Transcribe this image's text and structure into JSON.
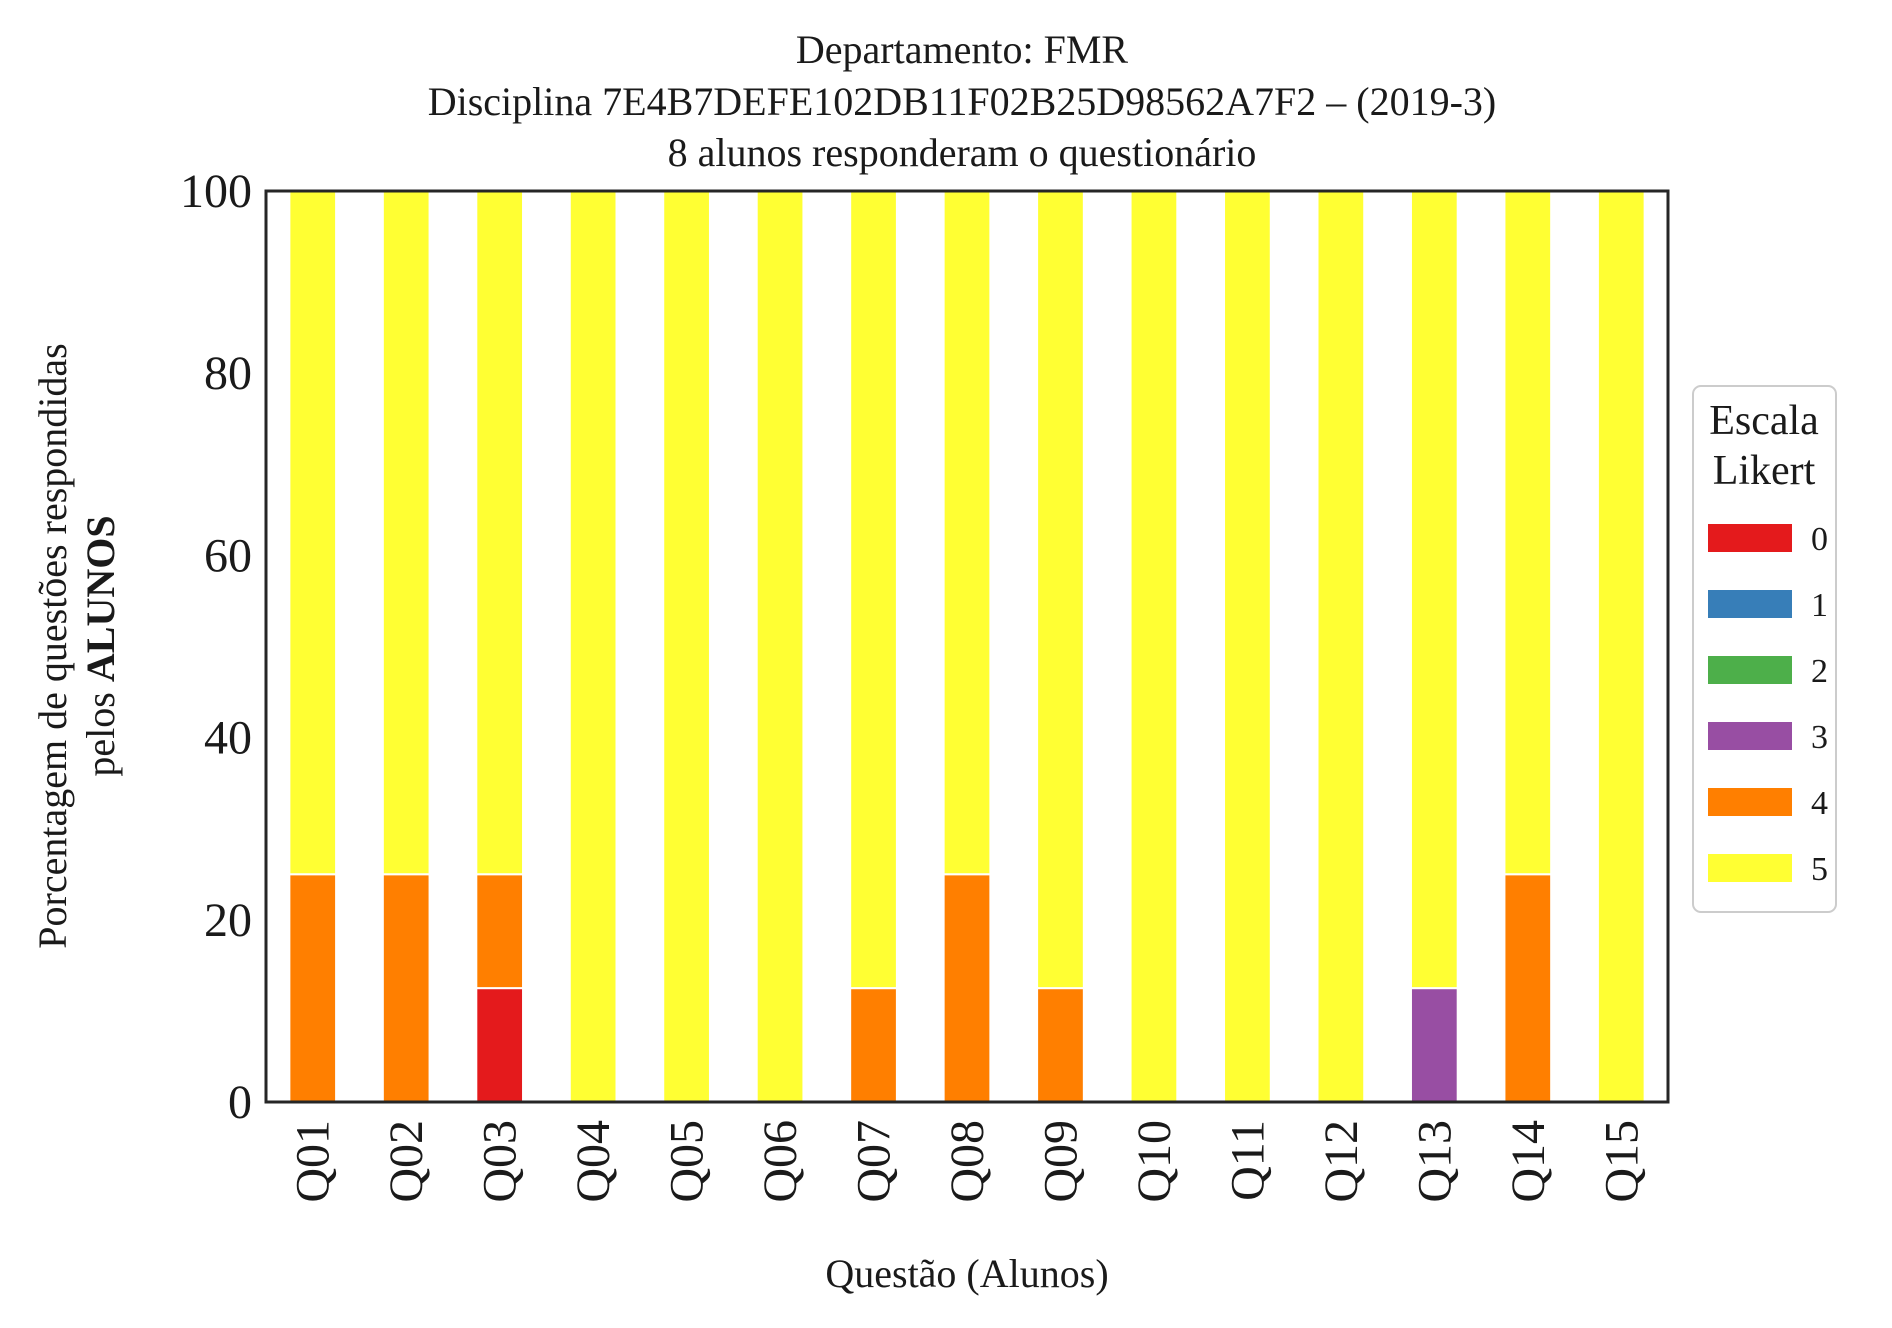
{
  "chart_data": {
    "type": "bar",
    "stacked": true,
    "title_lines": [
      "Departamento: FMR",
      "Disciplina 7E4B7DEFE102DB11F02B25D98562A7F2 – (2019-3)",
      "8 alunos responderam o questionário"
    ],
    "xlabel": "Questão (Alunos)",
    "ylabel_line1": "Porcentagem de questões respondidas",
    "ylabel_line2_prefix": "pelos ",
    "ylabel_line2_bold": "ALUNOS",
    "ylim": [
      0,
      100
    ],
    "yticks": [
      "0",
      "20",
      "40",
      "60",
      "80",
      "100"
    ],
    "categories": [
      "Q01",
      "Q02",
      "Q03",
      "Q04",
      "Q05",
      "Q06",
      "Q07",
      "Q08",
      "Q09",
      "Q10",
      "Q11",
      "Q12",
      "Q13",
      "Q14",
      "Q15"
    ],
    "legend": {
      "title_lines": [
        "Escala",
        "Likert"
      ],
      "placement": "right"
    },
    "series": [
      {
        "name": "0",
        "color": "#e41a1c",
        "values": [
          0,
          0,
          12.5,
          0,
          0,
          0,
          0,
          0,
          0,
          0,
          0,
          0,
          0,
          0,
          0
        ]
      },
      {
        "name": "1",
        "color": "#377eb8",
        "values": [
          0,
          0,
          0,
          0,
          0,
          0,
          0,
          0,
          0,
          0,
          0,
          0,
          0,
          0,
          0
        ]
      },
      {
        "name": "2",
        "color": "#4daf4a",
        "values": [
          0,
          0,
          0,
          0,
          0,
          0,
          0,
          0,
          0,
          0,
          0,
          0,
          0,
          0,
          0
        ]
      },
      {
        "name": "3",
        "color": "#984ea3",
        "values": [
          0,
          0,
          0,
          0,
          0,
          0,
          0,
          0,
          0,
          0,
          0,
          0,
          12.5,
          0,
          0
        ]
      },
      {
        "name": "4",
        "color": "#ff7f00",
        "values": [
          25,
          25,
          12.5,
          0,
          0,
          0,
          12.5,
          25,
          12.5,
          0,
          0,
          0,
          0,
          25,
          0
        ]
      },
      {
        "name": "5",
        "color": "#ffff33",
        "values": [
          75,
          75,
          75,
          100,
          100,
          100,
          87.5,
          75,
          87.5,
          100,
          100,
          100,
          87.5,
          75,
          100
        ]
      }
    ],
    "grid": false
  }
}
